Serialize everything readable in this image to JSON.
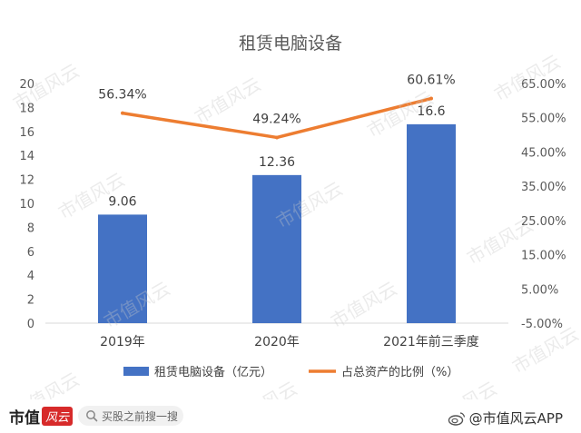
{
  "watermark_text": "市值风云",
  "chart_data": {
    "type": "bar",
    "title": "租赁电脑设备",
    "categories": [
      "2019年",
      "2020年",
      "2021年前三季度"
    ],
    "series": [
      {
        "name": "租赁电脑设备（亿元）",
        "kind": "bar",
        "axis": "left",
        "values": [
          9.06,
          12.36,
          16.6
        ],
        "labels": [
          "9.06",
          "12.36",
          "16.6"
        ],
        "color": "#4472c4"
      },
      {
        "name": "占总资产的比例（%）",
        "kind": "line",
        "axis": "right",
        "values": [
          56.34,
          49.24,
          60.61
        ],
        "labels": [
          "56.34%",
          "49.24%",
          "60.61%"
        ],
        "color": "#ed7d31"
      }
    ],
    "left_axis": {
      "min": 0,
      "max": 20,
      "ticks": [
        0,
        2,
        4,
        6,
        8,
        10,
        12,
        14,
        16,
        18,
        20
      ]
    },
    "right_axis": {
      "min": -5,
      "max": 65,
      "ticks": [
        -5,
        5,
        15,
        25,
        35,
        45,
        55,
        65
      ],
      "tick_labels": [
        "-5.00%",
        "5.00%",
        "15.00%",
        "25.00%",
        "35.00%",
        "45.00%",
        "55.00%",
        "65.00%"
      ]
    },
    "grid": false,
    "legend_position": "bottom"
  },
  "footer": {
    "brand_main": "市值",
    "brand_badge": "风云",
    "search_placeholder": "买股之前搜一搜",
    "credit": "@市值风云APP"
  },
  "colors": {
    "bar": "#4472c4",
    "line": "#ed7d31",
    "text": "#595959",
    "brand_red": "#d72a2a"
  }
}
